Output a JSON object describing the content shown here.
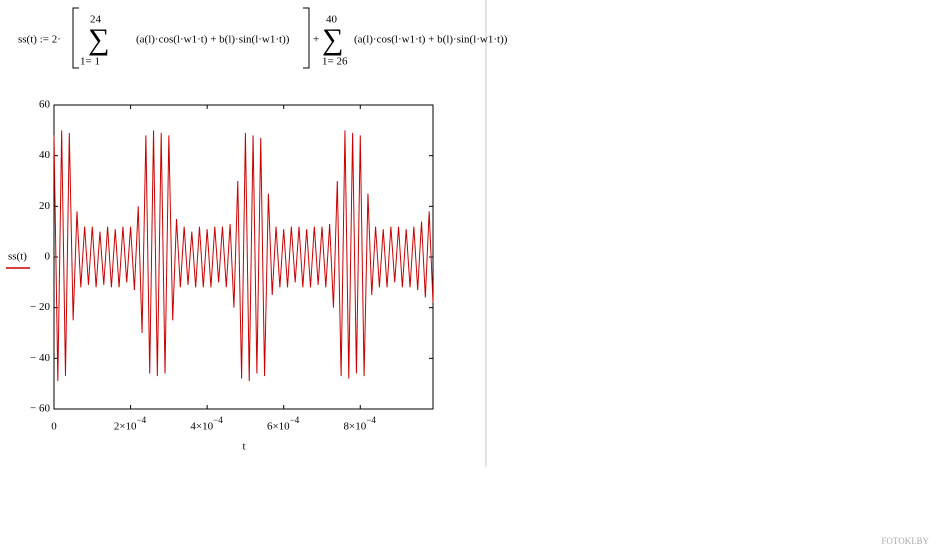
{
  "formula": {
    "lhs": "ss(t) := 2·",
    "sum1_upper": "24",
    "sum1_lower": "1= 1",
    "sum1_body": "(a(l)·cos(l·w1·t) + b(l)·sin(l·w1·t))",
    "plus": "+",
    "sum2_upper": "40",
    "sum2_lower": "1= 26",
    "sum2_body": "(a(l)·cos(l·w1·t) + b(l)·sin(l·w1·t))"
  },
  "watermark": "FOTOKI.BY",
  "chart_data": {
    "type": "line",
    "xlabel": "t",
    "x": [
      0,
      1e-05,
      2e-05,
      3e-05,
      4e-05,
      5e-05,
      6e-05,
      7e-05,
      8e-05,
      9e-05,
      0.0001,
      0.00011,
      0.00012,
      0.00013,
      0.00014,
      0.00015,
      0.00016,
      0.00017,
      0.00018,
      0.00019,
      0.0002,
      0.00021,
      0.00022,
      0.00023,
      0.00024,
      0.00025,
      0.00026,
      0.00027,
      0.00028,
      0.00029,
      0.0003,
      0.00031,
      0.00032,
      0.00033,
      0.00034,
      0.00035,
      0.00036,
      0.00037,
      0.00038,
      0.00039,
      0.0004,
      0.00041,
      0.00042,
      0.00043,
      0.00044,
      0.00045,
      0.00046,
      0.00047,
      0.00048,
      0.00049,
      0.0005,
      0.00051,
      0.00052,
      0.00053,
      0.00054,
      0.00055,
      0.00056,
      0.00057,
      0.00058,
      0.00059,
      0.0006,
      0.00061,
      0.00062,
      0.00063,
      0.00064,
      0.00065,
      0.00066,
      0.00067,
      0.00068,
      0.00069,
      0.0007,
      0.00071,
      0.00072,
      0.00073,
      0.00074,
      0.00075,
      0.00076,
      0.00077,
      0.00078,
      0.00079,
      0.0008,
      0.00081,
      0.00082,
      0.00083,
      0.00084,
      0.00085,
      0.00086,
      0.00087,
      0.00088,
      0.00089,
      0.0009,
      0.00091,
      0.00092,
      0.00093,
      0.00094,
      0.00095,
      0.00096,
      0.00097,
      0.00098,
      0.00099
    ],
    "series": [
      {
        "name": "ss(t)",
        "color": "#cc0000",
        "values": [
          48,
          -49,
          50,
          -47,
          49,
          -25,
          18,
          -12,
          12,
          -11,
          12,
          -12,
          10,
          -11,
          12,
          -12,
          11,
          -12,
          12,
          -10,
          12,
          -13,
          20,
          -30,
          48,
          -46,
          50,
          -47,
          49,
          -46,
          48,
          -25,
          15,
          -12,
          12,
          -11,
          10,
          -12,
          12,
          -12,
          11,
          -12,
          12,
          -10,
          12,
          -12,
          13,
          -20,
          30,
          -48,
          49,
          -49,
          48,
          -46,
          47,
          -47,
          25,
          -15,
          12,
          -12,
          11,
          -12,
          12,
          -10,
          12,
          -12,
          11,
          -12,
          12,
          -11,
          12,
          -12,
          13,
          -20,
          30,
          -47,
          50,
          -48,
          49,
          -46,
          48,
          -47,
          25,
          -15,
          12,
          -12,
          11,
          -12,
          12,
          -10,
          12,
          -12,
          11,
          -12,
          12,
          -13,
          14,
          -16,
          18,
          -18
        ]
      }
    ],
    "xlim": [
      0,
      0.00099
    ],
    "xticks": [
      0,
      {
        "value": 0.0002,
        "label": "2×10",
        "exponent": "−4"
      },
      {
        "value": 0.0004,
        "label": "4×10",
        "exponent": "−4"
      },
      {
        "value": 0.0006,
        "label": "6×10",
        "exponent": "−4"
      },
      {
        "value": 0.0008,
        "label": "8×10",
        "exponent": "−4"
      }
    ],
    "ylim": [
      -60,
      60
    ],
    "yticks": [
      60,
      40,
      20,
      0,
      {
        "value": -20,
        "label": "− 20"
      },
      {
        "value": -40,
        "label": "− 40"
      },
      {
        "value": -60,
        "label": "− 60"
      }
    ]
  }
}
